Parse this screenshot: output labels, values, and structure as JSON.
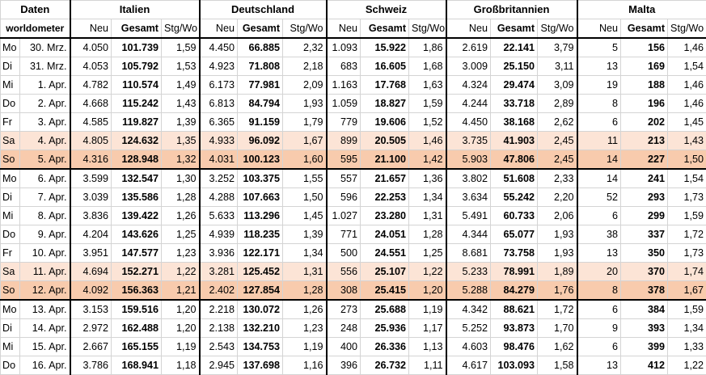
{
  "header": {
    "daten_label": "Daten",
    "source_label": "worldometer",
    "countries": [
      "Italien",
      "Deutschland",
      "Schweiz",
      "Großbritannien",
      "Malta"
    ],
    "sub_labels": {
      "neu": "Neu",
      "gesamt": "Gesamt",
      "stg": "Stg/Wo"
    }
  },
  "rows": [
    {
      "wd": "Mo",
      "date": "30. Mrz.",
      "type": "",
      "v": [
        [
          "4.050",
          "101.739",
          "1,59"
        ],
        [
          "4.450",
          "66.885",
          "2,32"
        ],
        [
          "1.093",
          "15.922",
          "1,86"
        ],
        [
          "2.619",
          "22.141",
          "3,79"
        ],
        [
          "5",
          "156",
          "1,46"
        ]
      ]
    },
    {
      "wd": "Di",
      "date": "31. Mrz.",
      "type": "",
      "v": [
        [
          "4.053",
          "105.792",
          "1,53"
        ],
        [
          "4.923",
          "71.808",
          "2,18"
        ],
        [
          "683",
          "16.605",
          "1,68"
        ],
        [
          "3.009",
          "25.150",
          "3,11"
        ],
        [
          "13",
          "169",
          "1,54"
        ]
      ]
    },
    {
      "wd": "Mi",
      "date": "1. Apr.",
      "type": "",
      "v": [
        [
          "4.782",
          "110.574",
          "1,49"
        ],
        [
          "6.173",
          "77.981",
          "2,09"
        ],
        [
          "1.163",
          "17.768",
          "1,63"
        ],
        [
          "4.324",
          "29.474",
          "3,09"
        ],
        [
          "19",
          "188",
          "1,46"
        ]
      ]
    },
    {
      "wd": "Do",
      "date": "2. Apr.",
      "type": "",
      "v": [
        [
          "4.668",
          "115.242",
          "1,43"
        ],
        [
          "6.813",
          "84.794",
          "1,93"
        ],
        [
          "1.059",
          "18.827",
          "1,59"
        ],
        [
          "4.244",
          "33.718",
          "2,89"
        ],
        [
          "8",
          "196",
          "1,46"
        ]
      ]
    },
    {
      "wd": "Fr",
      "date": "3. Apr.",
      "type": "",
      "v": [
        [
          "4.585",
          "119.827",
          "1,39"
        ],
        [
          "6.365",
          "91.159",
          "1,79"
        ],
        [
          "779",
          "19.606",
          "1,52"
        ],
        [
          "4.450",
          "38.168",
          "2,62"
        ],
        [
          "6",
          "202",
          "1,45"
        ]
      ]
    },
    {
      "wd": "Sa",
      "date": "4. Apr.",
      "type": "sa",
      "v": [
        [
          "4.805",
          "124.632",
          "1,35"
        ],
        [
          "4.933",
          "96.092",
          "1,67"
        ],
        [
          "899",
          "20.505",
          "1,46"
        ],
        [
          "3.735",
          "41.903",
          "2,45"
        ],
        [
          "11",
          "213",
          "1,43"
        ]
      ]
    },
    {
      "wd": "So",
      "date": "5. Apr.",
      "type": "so",
      "v": [
        [
          "4.316",
          "128.948",
          "1,32"
        ],
        [
          "4.031",
          "100.123",
          "1,60"
        ],
        [
          "595",
          "21.100",
          "1,42"
        ],
        [
          "5.903",
          "47.806",
          "2,45"
        ],
        [
          "14",
          "227",
          "1,50"
        ]
      ]
    },
    {
      "wd": "Mo",
      "date": "6. Apr.",
      "type": "",
      "v": [
        [
          "3.599",
          "132.547",
          "1,30"
        ],
        [
          "3.252",
          "103.375",
          "1,55"
        ],
        [
          "557",
          "21.657",
          "1,36"
        ],
        [
          "3.802",
          "51.608",
          "2,33"
        ],
        [
          "14",
          "241",
          "1,54"
        ]
      ]
    },
    {
      "wd": "Di",
      "date": "7. Apr.",
      "type": "",
      "v": [
        [
          "3.039",
          "135.586",
          "1,28"
        ],
        [
          "4.288",
          "107.663",
          "1,50"
        ],
        [
          "596",
          "22.253",
          "1,34"
        ],
        [
          "3.634",
          "55.242",
          "2,20"
        ],
        [
          "52",
          "293",
          "1,73"
        ]
      ]
    },
    {
      "wd": "Mi",
      "date": "8. Apr.",
      "type": "",
      "v": [
        [
          "3.836",
          "139.422",
          "1,26"
        ],
        [
          "5.633",
          "113.296",
          "1,45"
        ],
        [
          "1.027",
          "23.280",
          "1,31"
        ],
        [
          "5.491",
          "60.733",
          "2,06"
        ],
        [
          "6",
          "299",
          "1,59"
        ]
      ]
    },
    {
      "wd": "Do",
      "date": "9. Apr.",
      "type": "",
      "v": [
        [
          "4.204",
          "143.626",
          "1,25"
        ],
        [
          "4.939",
          "118.235",
          "1,39"
        ],
        [
          "771",
          "24.051",
          "1,28"
        ],
        [
          "4.344",
          "65.077",
          "1,93"
        ],
        [
          "38",
          "337",
          "1,72"
        ]
      ]
    },
    {
      "wd": "Fr",
      "date": "10. Apr.",
      "type": "",
      "v": [
        [
          "3.951",
          "147.577",
          "1,23"
        ],
        [
          "3.936",
          "122.171",
          "1,34"
        ],
        [
          "500",
          "24.551",
          "1,25"
        ],
        [
          "8.681",
          "73.758",
          "1,93"
        ],
        [
          "13",
          "350",
          "1,73"
        ]
      ]
    },
    {
      "wd": "Sa",
      "date": "11. Apr.",
      "type": "sa",
      "v": [
        [
          "4.694",
          "152.271",
          "1,22"
        ],
        [
          "3.281",
          "125.452",
          "1,31"
        ],
        [
          "556",
          "25.107",
          "1,22"
        ],
        [
          "5.233",
          "78.991",
          "1,89"
        ],
        [
          "20",
          "370",
          "1,74"
        ]
      ]
    },
    {
      "wd": "So",
      "date": "12. Apr.",
      "type": "so",
      "v": [
        [
          "4.092",
          "156.363",
          "1,21"
        ],
        [
          "2.402",
          "127.854",
          "1,28"
        ],
        [
          "308",
          "25.415",
          "1,20"
        ],
        [
          "5.288",
          "84.279",
          "1,76"
        ],
        [
          "8",
          "378",
          "1,67"
        ]
      ]
    },
    {
      "wd": "Mo",
      "date": "13. Apr.",
      "type": "",
      "v": [
        [
          "3.153",
          "159.516",
          "1,20"
        ],
        [
          "2.218",
          "130.072",
          "1,26"
        ],
        [
          "273",
          "25.688",
          "1,19"
        ],
        [
          "4.342",
          "88.621",
          "1,72"
        ],
        [
          "6",
          "384",
          "1,59"
        ]
      ]
    },
    {
      "wd": "Di",
      "date": "14. Apr.",
      "type": "",
      "v": [
        [
          "2.972",
          "162.488",
          "1,20"
        ],
        [
          "2.138",
          "132.210",
          "1,23"
        ],
        [
          "248",
          "25.936",
          "1,17"
        ],
        [
          "5.252",
          "93.873",
          "1,70"
        ],
        [
          "9",
          "393",
          "1,34"
        ]
      ]
    },
    {
      "wd": "Mi",
      "date": "15. Apr.",
      "type": "",
      "v": [
        [
          "2.667",
          "165.155",
          "1,19"
        ],
        [
          "2.543",
          "134.753",
          "1,19"
        ],
        [
          "400",
          "26.336",
          "1,13"
        ],
        [
          "4.603",
          "98.476",
          "1,62"
        ],
        [
          "6",
          "399",
          "1,33"
        ]
      ]
    },
    {
      "wd": "Do",
      "date": "16. Apr.",
      "type": "",
      "v": [
        [
          "3.786",
          "168.941",
          "1,18"
        ],
        [
          "2.945",
          "137.698",
          "1,16"
        ],
        [
          "396",
          "26.732",
          "1,11"
        ],
        [
          "4.617",
          "103.093",
          "1,58"
        ],
        [
          "13",
          "412",
          "1,22"
        ]
      ]
    }
  ]
}
